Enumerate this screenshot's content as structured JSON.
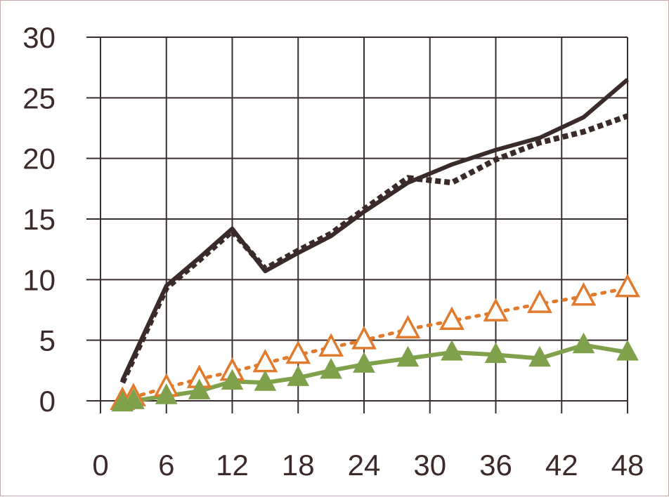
{
  "chart_data": {
    "type": "line",
    "title": "",
    "xlabel": "",
    "ylabel": "",
    "xlim": [
      0,
      48
    ],
    "ylim": [
      0,
      30
    ],
    "x_ticks": [
      0,
      6,
      12,
      18,
      24,
      30,
      36,
      42,
      48
    ],
    "y_ticks": [
      0,
      5,
      10,
      15,
      20,
      25,
      30
    ],
    "x_tick_labels": [
      "0",
      "6",
      "12",
      "18",
      "24",
      "30",
      "36",
      "42",
      "48"
    ],
    "y_tick_labels": [
      "0",
      "5",
      "10",
      "15",
      "20",
      "25",
      "30"
    ],
    "grid": true,
    "legend": "none",
    "series": [
      {
        "style": "solid-dark",
        "color": "#3b2a2a",
        "marker": "none",
        "points": [
          [
            2,
            1.7
          ],
          [
            6,
            9.5
          ],
          [
            9,
            11.8
          ],
          [
            12,
            14.2
          ],
          [
            15,
            10.7
          ],
          [
            18,
            12.2
          ],
          [
            21,
            13.6
          ],
          [
            24,
            15.6
          ],
          [
            28,
            18.0
          ],
          [
            32,
            19.5
          ],
          [
            36,
            20.7
          ],
          [
            40,
            21.7
          ],
          [
            44,
            23.4
          ],
          [
            48,
            26.5
          ]
        ]
      },
      {
        "style": "dotted-dark",
        "color": "#3b2a2a",
        "marker": "none",
        "points": [
          [
            2,
            1.5
          ],
          [
            6,
            9.3
          ],
          [
            9,
            11.6
          ],
          [
            12,
            14.0
          ],
          [
            15,
            10.9
          ],
          [
            18,
            12.4
          ],
          [
            21,
            13.8
          ],
          [
            24,
            15.8
          ],
          [
            28,
            18.4
          ],
          [
            32,
            18.0
          ],
          [
            36,
            19.9
          ],
          [
            40,
            21.3
          ],
          [
            44,
            22.2
          ],
          [
            48,
            23.5
          ]
        ]
      },
      {
        "style": "dotted-orange-open-triangle",
        "color": "#e07b2e",
        "marker": "open-triangle",
        "points": [
          [
            2,
            0.0
          ],
          [
            3,
            0.3
          ],
          [
            6,
            1.1
          ],
          [
            9,
            1.8
          ],
          [
            12,
            2.4
          ],
          [
            15,
            3.1
          ],
          [
            18,
            3.8
          ],
          [
            21,
            4.4
          ],
          [
            24,
            5.0
          ],
          [
            28,
            5.9
          ],
          [
            32,
            6.6
          ],
          [
            36,
            7.3
          ],
          [
            40,
            8.0
          ],
          [
            44,
            8.6
          ],
          [
            48,
            9.3
          ]
        ]
      },
      {
        "style": "solid-green-filled-triangle",
        "color": "#7fa14b",
        "marker": "filled-triangle",
        "points": [
          [
            2,
            -0.2
          ],
          [
            3,
            0.0
          ],
          [
            6,
            0.4
          ],
          [
            9,
            0.8
          ],
          [
            12,
            1.6
          ],
          [
            15,
            1.5
          ],
          [
            18,
            1.9
          ],
          [
            21,
            2.5
          ],
          [
            24,
            3.0
          ],
          [
            28,
            3.5
          ],
          [
            32,
            4.0
          ],
          [
            36,
            3.8
          ],
          [
            40,
            3.5
          ],
          [
            44,
            4.6
          ],
          [
            48,
            4.0
          ]
        ]
      }
    ]
  }
}
